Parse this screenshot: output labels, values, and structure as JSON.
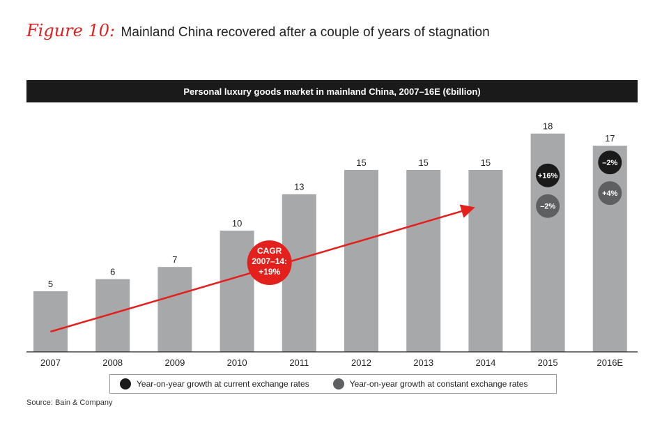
{
  "figure": {
    "label": "Figure 10:",
    "title": "Mainland China recovered after a couple of years of stagnation"
  },
  "chart_data": {
    "type": "bar",
    "title": "Personal luxury goods market in mainland China, 2007–16E (€billion)",
    "categories": [
      "2007",
      "2008",
      "2009",
      "2010",
      "2011",
      "2012",
      "2013",
      "2014",
      "2015",
      "2016E"
    ],
    "values": [
      5,
      6,
      7,
      10,
      13,
      15,
      15,
      15,
      18,
      17
    ],
    "ylim": [
      0,
      18.5
    ],
    "xlabel": "",
    "ylabel": "",
    "annotations": {
      "cagr": {
        "lines": [
          "CAGR",
          "2007–14:",
          "+19%"
        ],
        "from": "2007",
        "to": "2014"
      },
      "growth": [
        {
          "category": "2015",
          "current": "+16%",
          "constant": "–2%"
        },
        {
          "category": "2016E",
          "current": "–2%",
          "constant": "+4%"
        }
      ]
    }
  },
  "legend": {
    "current": {
      "label": "Year-on-year growth at current exchange rates",
      "color": "#1a1a1a"
    },
    "constant": {
      "label": "Year-on-year growth at constant exchange rates",
      "color": "#5e5f61"
    }
  },
  "colors": {
    "bar": "#a7a8aa",
    "cagr": "#e3201c",
    "header": "#1a1a1a"
  },
  "source": "Source: Bain & Company"
}
